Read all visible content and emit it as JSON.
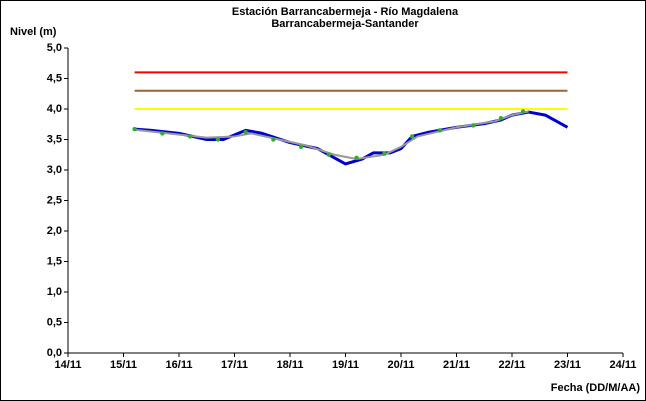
{
  "chart_data": {
    "type": "line",
    "title": "Estación Barrancabermeja - Río Magdalena",
    "subtitle": "Barrancabermeja-Santander",
    "y_label": "Nivel (m)",
    "x_label": "Fecha (DD/M/AA)",
    "xlim": [
      14,
      24
    ],
    "xticks": [
      {
        "value": 14,
        "label": "14/11"
      },
      {
        "value": 15,
        "label": "15/11"
      },
      {
        "value": 16,
        "label": "16/11"
      },
      {
        "value": 17,
        "label": "17/11"
      },
      {
        "value": 18,
        "label": "18/11"
      },
      {
        "value": 19,
        "label": "19/11"
      },
      {
        "value": 20,
        "label": "20/11"
      },
      {
        "value": 21,
        "label": "21/11"
      },
      {
        "value": 22,
        "label": "22/11"
      },
      {
        "value": 23,
        "label": "23/11"
      },
      {
        "value": 24,
        "label": "24/11"
      }
    ],
    "ylim": [
      0,
      5
    ],
    "yticks": [
      {
        "value": 0,
        "label": "0,0"
      },
      {
        "value": 0.5,
        "label": "0,5"
      },
      {
        "value": 1,
        "label": "1,0"
      },
      {
        "value": 1.5,
        "label": "1,5"
      },
      {
        "value": 2,
        "label": "2,0"
      },
      {
        "value": 2.5,
        "label": "2,5"
      },
      {
        "value": 3,
        "label": "3,0"
      },
      {
        "value": 3.5,
        "label": "3,5"
      },
      {
        "value": 4,
        "label": "4,0"
      },
      {
        "value": 4.5,
        "label": "4,5"
      },
      {
        "value": 5,
        "label": "5,0"
      }
    ],
    "grid": false,
    "series": [
      {
        "color": "#ff0000",
        "width": 2,
        "mode": "line",
        "x": [
          15.2,
          23.0
        ],
        "values": [
          4.6,
          4.6
        ]
      },
      {
        "color": "#996633",
        "width": 2,
        "mode": "line",
        "x": [
          15.2,
          23.0
        ],
        "values": [
          4.3,
          4.3
        ]
      },
      {
        "color": "#ffff00",
        "width": 2,
        "mode": "line",
        "x": [
          15.2,
          23.0
        ],
        "values": [
          4.0,
          4.0
        ]
      },
      {
        "color": "#0000cc",
        "width": 3,
        "mode": "line",
        "x": [
          15.2,
          15.5,
          16.0,
          16.5,
          16.8,
          17.2,
          17.5,
          18.0,
          18.5,
          19.0,
          19.3,
          19.5,
          19.8,
          20.0,
          20.2,
          20.5,
          21.0,
          21.5,
          21.8,
          22.0,
          22.3,
          22.6,
          23.0
        ],
        "values": [
          3.67,
          3.65,
          3.6,
          3.5,
          3.5,
          3.65,
          3.6,
          3.45,
          3.35,
          3.1,
          3.18,
          3.28,
          3.28,
          3.35,
          3.55,
          3.62,
          3.7,
          3.76,
          3.82,
          3.9,
          3.95,
          3.9,
          3.7
        ]
      },
      {
        "color": "#999999",
        "width": 2,
        "mode": "line",
        "x": [
          15.2,
          15.8,
          16.5,
          17.0,
          17.3,
          17.7,
          18.3,
          18.8,
          19.2,
          19.7,
          20.0,
          20.3,
          21.0,
          21.7,
          22.0,
          22.3
        ],
        "values": [
          3.66,
          3.6,
          3.53,
          3.55,
          3.6,
          3.52,
          3.4,
          3.25,
          3.18,
          3.25,
          3.38,
          3.55,
          3.7,
          3.8,
          3.9,
          3.96
        ]
      },
      {
        "color": "#33aa33",
        "width": 2,
        "mode": "markers",
        "x": [
          15.2,
          15.7,
          16.2,
          16.7,
          17.2,
          17.7,
          18.2,
          18.7,
          19.2,
          19.7,
          20.2,
          20.7,
          21.3,
          21.8,
          22.2
        ],
        "values": [
          3.67,
          3.6,
          3.55,
          3.5,
          3.62,
          3.5,
          3.38,
          3.25,
          3.2,
          3.27,
          3.55,
          3.65,
          3.73,
          3.85,
          3.96
        ]
      }
    ]
  }
}
